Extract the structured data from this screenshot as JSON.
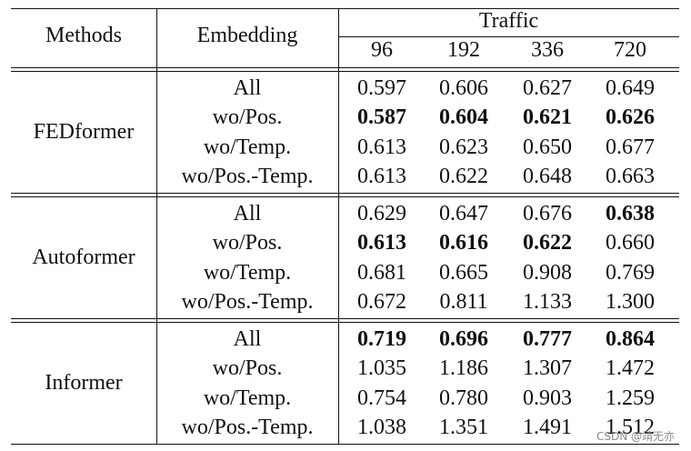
{
  "header": {
    "methods_label": "Methods",
    "embedding_label": "Embedding",
    "dataset": "Traffic",
    "horizons": [
      "96",
      "192",
      "336",
      "720"
    ]
  },
  "groups": [
    {
      "method": "FEDformer",
      "rows": [
        {
          "embedding": "All",
          "values": [
            "0.597",
            "0.606",
            "0.627",
            "0.649"
          ],
          "bold": [
            false,
            false,
            false,
            false
          ]
        },
        {
          "embedding": "wo/Pos.",
          "values": [
            "0.587",
            "0.604",
            "0.621",
            "0.626"
          ],
          "bold": [
            true,
            true,
            true,
            true
          ]
        },
        {
          "embedding": "wo/Temp.",
          "values": [
            "0.613",
            "0.623",
            "0.650",
            "0.677"
          ],
          "bold": [
            false,
            false,
            false,
            false
          ]
        },
        {
          "embedding": "wo/Pos.-Temp.",
          "values": [
            "0.613",
            "0.622",
            "0.648",
            "0.663"
          ],
          "bold": [
            false,
            false,
            false,
            false
          ]
        }
      ]
    },
    {
      "method": "Autoformer",
      "rows": [
        {
          "embedding": "All",
          "values": [
            "0.629",
            "0.647",
            "0.676",
            "0.638"
          ],
          "bold": [
            false,
            false,
            false,
            true
          ]
        },
        {
          "embedding": "wo/Pos.",
          "values": [
            "0.613",
            "0.616",
            "0.622",
            "0.660"
          ],
          "bold": [
            true,
            true,
            true,
            false
          ]
        },
        {
          "embedding": "wo/Temp.",
          "values": [
            "0.681",
            "0.665",
            "0.908",
            "0.769"
          ],
          "bold": [
            false,
            false,
            false,
            false
          ]
        },
        {
          "embedding": "wo/Pos.-Temp.",
          "values": [
            "0.672",
            "0.811",
            "1.133",
            "1.300"
          ],
          "bold": [
            false,
            false,
            false,
            false
          ]
        }
      ]
    },
    {
      "method": "Informer",
      "rows": [
        {
          "embedding": "All",
          "values": [
            "0.719",
            "0.696",
            "0.777",
            "0.864"
          ],
          "bold": [
            true,
            true,
            true,
            true
          ]
        },
        {
          "embedding": "wo/Pos.",
          "values": [
            "1.035",
            "1.186",
            "1.307",
            "1.472"
          ],
          "bold": [
            false,
            false,
            false,
            false
          ]
        },
        {
          "embedding": "wo/Temp.",
          "values": [
            "0.754",
            "0.780",
            "0.903",
            "1.259"
          ],
          "bold": [
            false,
            false,
            false,
            false
          ]
        },
        {
          "embedding": "wo/Pos.-Temp.",
          "values": [
            "1.038",
            "1.351",
            "1.491",
            "1.512"
          ],
          "bold": [
            false,
            false,
            false,
            false
          ]
        }
      ]
    }
  ],
  "watermark": "CSDN @靖无亦"
}
